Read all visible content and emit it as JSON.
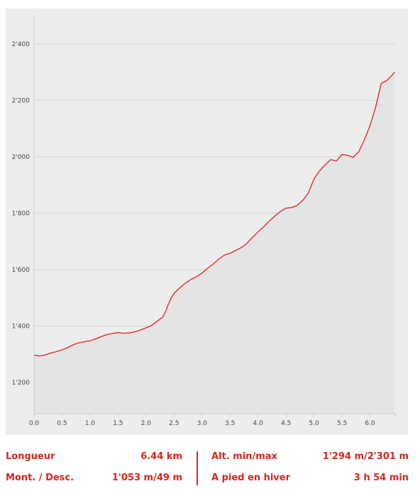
{
  "colors": {
    "line": "#e02020",
    "area": "#e4e4e4",
    "panel": "#ededed",
    "grid": "#d6d6d6",
    "axis": "#cccccc",
    "stat_text": "#d7261e"
  },
  "chart_data": {
    "type": "area",
    "title": "",
    "xlabel": "",
    "ylabel": "",
    "xlim": [
      0,
      6.45
    ],
    "ylim": [
      1090,
      2500
    ],
    "grid": "horizontal",
    "x_ticks": [
      0.0,
      0.5,
      1.0,
      1.5,
      2.0,
      2.5,
      3.0,
      3.5,
      4.0,
      4.5,
      5.0,
      5.5,
      6.0
    ],
    "x_tick_labels": [
      "0.0",
      "0.5",
      "1.0",
      "1.5",
      "2.0",
      "2.5",
      "3.0",
      "3.5",
      "4.0",
      "4.5",
      "5.0",
      "5.5",
      "6.0"
    ],
    "y_ticks": [
      1200,
      1400,
      1600,
      1800,
      2000,
      2200,
      2400
    ],
    "y_tick_labels": [
      "1'200",
      "1'400",
      "1'600",
      "1'800",
      "2'000",
      "2'200",
      "2'400"
    ],
    "series": [
      {
        "x": [
          0.0,
          0.1,
          0.2,
          0.3,
          0.4,
          0.5,
          0.6,
          0.7,
          0.8,
          0.9,
          1.0,
          1.1,
          1.2,
          1.3,
          1.4,
          1.5,
          1.6,
          1.7,
          1.8,
          1.9,
          2.0,
          2.1,
          2.2,
          2.3,
          2.35,
          2.4,
          2.45,
          2.5,
          2.6,
          2.7,
          2.8,
          2.9,
          3.0,
          3.1,
          3.2,
          3.3,
          3.4,
          3.5,
          3.6,
          3.7,
          3.8,
          3.9,
          4.0,
          4.1,
          4.2,
          4.3,
          4.4,
          4.5,
          4.6,
          4.7,
          4.8,
          4.9,
          5.0,
          5.1,
          5.2,
          5.3,
          5.4,
          5.5,
          5.6,
          5.7,
          5.8,
          5.9,
          6.0,
          6.1,
          6.2,
          6.3,
          6.4,
          6.44
        ],
        "y": [
          1298,
          1294,
          1298,
          1305,
          1310,
          1316,
          1324,
          1334,
          1341,
          1345,
          1348,
          1355,
          1363,
          1370,
          1374,
          1377,
          1375,
          1376,
          1380,
          1386,
          1394,
          1402,
          1418,
          1432,
          1452,
          1478,
          1500,
          1516,
          1535,
          1552,
          1565,
          1575,
          1588,
          1605,
          1620,
          1638,
          1652,
          1658,
          1668,
          1678,
          1693,
          1714,
          1734,
          1752,
          1772,
          1790,
          1806,
          1818,
          1820,
          1828,
          1846,
          1872,
          1922,
          1950,
          1972,
          1990,
          1985,
          2008,
          2005,
          1998,
          2018,
          2060,
          2110,
          2175,
          2260,
          2270,
          2290,
          2301
        ]
      }
    ]
  },
  "stats": {
    "length_label": "Longueur",
    "length_value": "6.44 km",
    "ascent_label": "Mont. / Desc.",
    "ascent_value": "1'053 m/49 m",
    "altitude_label": "Alt. min/max",
    "altitude_value": "1'294 m/2'301 m",
    "duration_label": "A pied en hiver",
    "duration_value": "3 h 54 min"
  }
}
